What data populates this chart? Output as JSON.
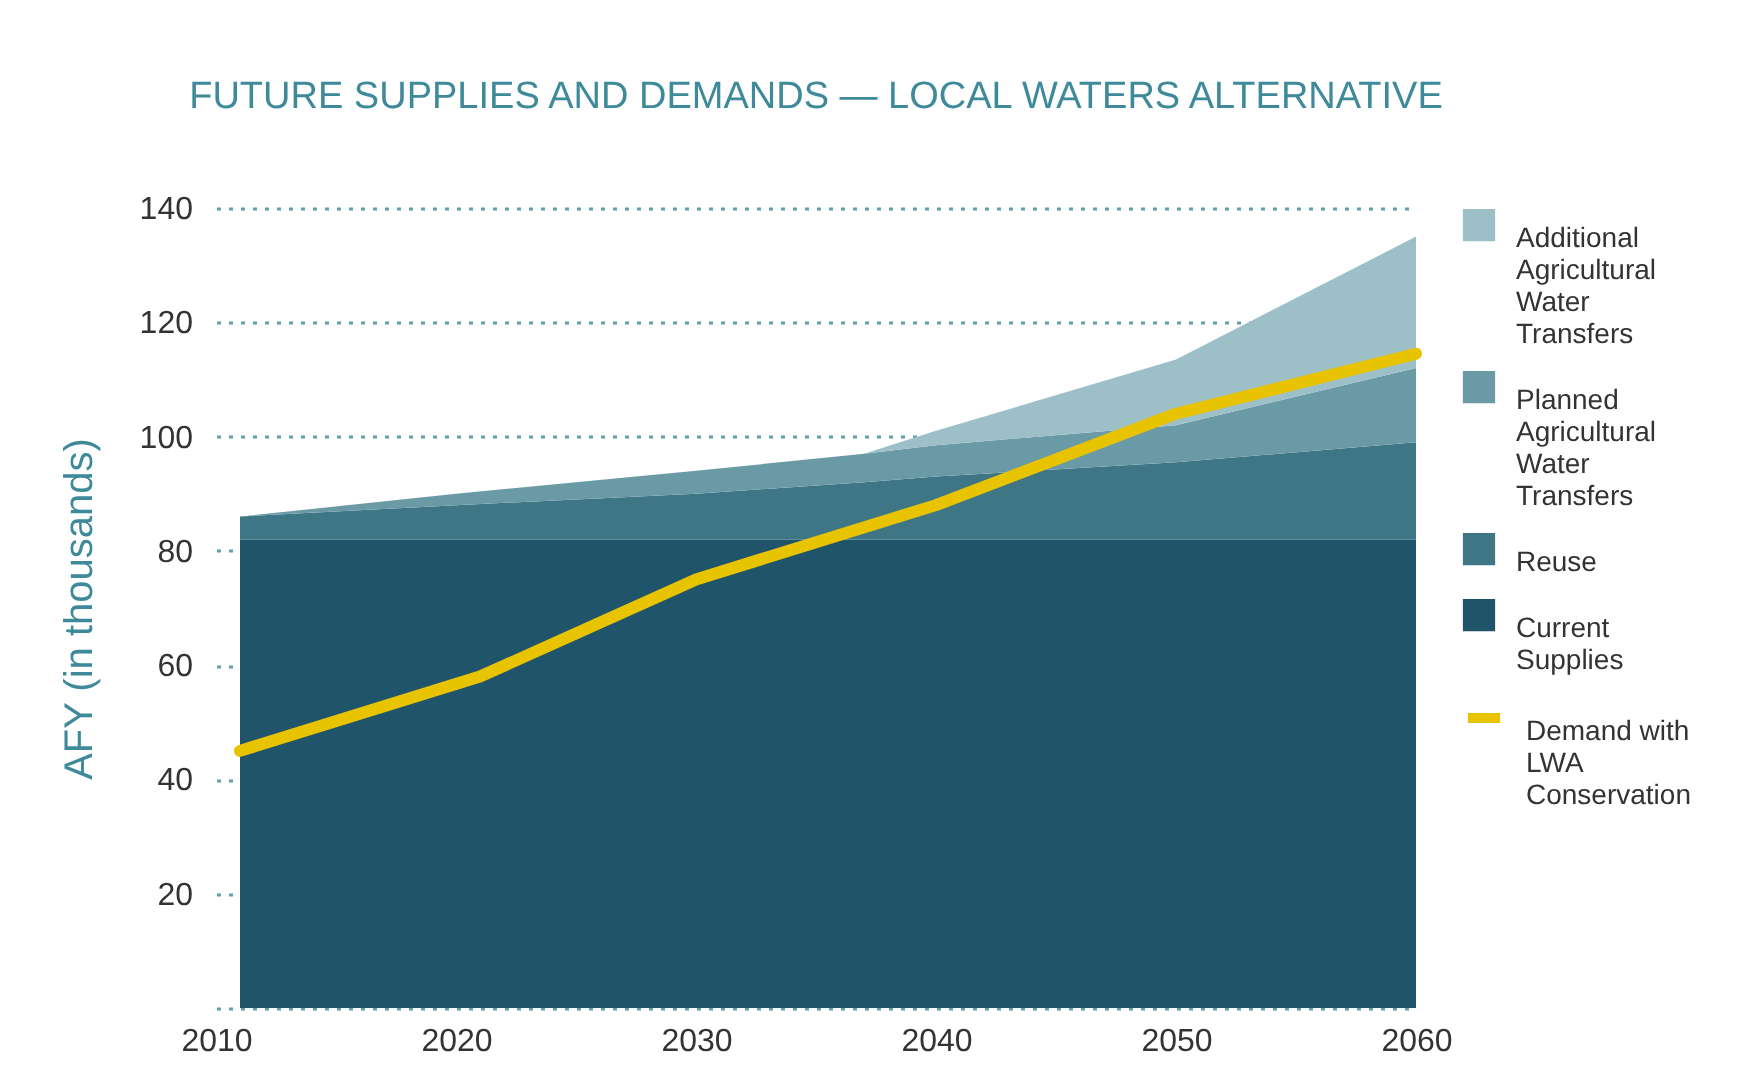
{
  "chart_data": {
    "type": "area",
    "title": "FUTURE SUPPLIES AND DEMANDS — LOCAL WATERS ALTERNATIVE",
    "ylabel": "AFY (in thousands)",
    "x": [
      2011,
      2020,
      2030,
      2037,
      2040,
      2050,
      2060
    ],
    "stacked": true,
    "series": [
      {
        "name": "Current Supplies",
        "color": "#20546a",
        "values": [
          82,
          82,
          82,
          82,
          82,
          82,
          82
        ]
      },
      {
        "name": "Reuse",
        "color": "#3e7686",
        "values": [
          4,
          6,
          8,
          10,
          11,
          13.5,
          17
        ]
      },
      {
        "name": "Planned Agricultural Water Transfers",
        "color": "#6b9aa7",
        "values": [
          0,
          2,
          4,
          5,
          5.5,
          6.5,
          13
        ]
      },
      {
        "name": "Additional Agricultural Water Transfers",
        "color": "#9dc0c8",
        "values": [
          0,
          0,
          0,
          0,
          2.5,
          11.5,
          23
        ]
      },
      {
        "name": "Demand with LWA Conservation",
        "type": "line",
        "color": "#e8c300",
        "x": [
          2011,
          2021,
          2030,
          2040,
          2050,
          2060
        ],
        "values": [
          45,
          58,
          75,
          88,
          104,
          114.5
        ]
      }
    ],
    "xlim": [
      2010,
      2060
    ],
    "xticks": [
      2010,
      2020,
      2030,
      2040,
      2050,
      2060
    ],
    "ylim": [
      0,
      140
    ],
    "yticks": [
      {
        "value": 0,
        "label": null
      },
      20,
      40,
      60,
      80,
      100,
      120,
      140
    ],
    "grid": "y",
    "legend": "right"
  }
}
